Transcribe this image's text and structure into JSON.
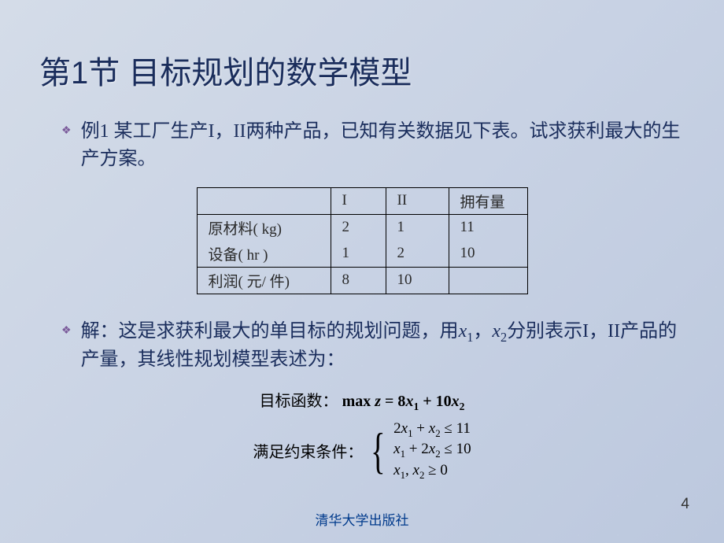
{
  "title": "第1节  目标规划的数学模型",
  "bullets": {
    "example": "例1  某工厂生产I，II两种产品，已知有关数据见下表。试求获利最大的生产方案。",
    "solution_prefix": "解：这是求获利最大的单目标的规划问题，用",
    "solution_mid1": "，",
    "solution_mid2": "分别表示I，II产品的产量，其线性规划模型表述为："
  },
  "vars": {
    "x1": "x",
    "x1_sub": "1",
    "x2": "x",
    "x2_sub": "2"
  },
  "table": {
    "headers": [
      "",
      "I",
      "II",
      "拥有量"
    ],
    "rows": [
      [
        "原材料( kg)",
        "2",
        "1",
        "11"
      ],
      [
        "设备( hr )",
        "1",
        "2",
        "10"
      ],
      [
        "利润( 元/ 件)",
        "8",
        "10",
        ""
      ]
    ],
    "col_widths": [
      "170px",
      "70px",
      "80px",
      "100px"
    ]
  },
  "math": {
    "objective_label": "目标函数：",
    "objective_eq": "max z = 8x₁ + 10x₂",
    "constraint_label": "满足约束条件：",
    "constraints": [
      "2x₁ + x₂ ≤ 11",
      "x₁ + 2x₂ ≤ 10",
      "x₁, x₂ ≥ 0"
    ]
  },
  "publisher": "清华大学出版社",
  "page_number": "4",
  "colors": {
    "title_color": "#1a2d5c",
    "body_color": "#1a2d5c",
    "diamond_color": "#7a5a9a",
    "publisher_color": "#003a8c",
    "bg_start": "#d4dce8",
    "bg_end": "#bcc8de"
  },
  "typography": {
    "title_fontsize": 40,
    "body_fontsize": 24,
    "table_fontsize": 19,
    "math_fontsize": 20
  }
}
